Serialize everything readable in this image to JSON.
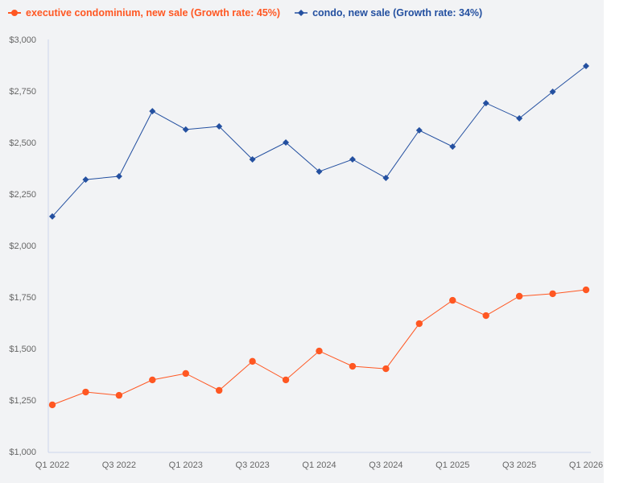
{
  "chart_data": {
    "type": "line",
    "categories": [
      "Q1 2022",
      "Q2 2022",
      "Q3 2022",
      "Q4 2022",
      "Q1 2023",
      "Q2 2023",
      "Q3 2023",
      "Q4 2023",
      "Q1 2024",
      "Q2 2024",
      "Q3 2024",
      "Q4 2024",
      "Q1 2025",
      "Q2 2025",
      "Q3 2025",
      "Q4 2025",
      "Q1 2026"
    ],
    "x_tick_labels": [
      "Q1 2022",
      "Q3 2022",
      "Q1 2023",
      "Q3 2023",
      "Q1 2024",
      "Q3 2024",
      "Q1 2025",
      "Q3 2025",
      "Q1 2026"
    ],
    "y_tick_labels": [
      "$1,000",
      "$1,250",
      "$1,500",
      "$1,750",
      "$2,000",
      "$2,250",
      "$2,500",
      "$2,750",
      "$3,000"
    ],
    "ylim": [
      1000,
      3000
    ],
    "grid": false,
    "legend_position": "top-left",
    "series": [
      {
        "name": "executive condominium, new sale (Growth rate: 45%)",
        "color": "#ff5722",
        "marker": "circle",
        "values": [
          1227,
          1289,
          1273,
          1348,
          1379,
          1297,
          1438,
          1348,
          1488,
          1414,
          1402,
          1621,
          1734,
          1660,
          1754,
          1766,
          1785
        ]
      },
      {
        "name": "condo, new sale (Growth rate: 34%)",
        "color": "#2450a0",
        "marker": "diamond",
        "values": [
          2141,
          2320,
          2336,
          2652,
          2563,
          2578,
          2418,
          2500,
          2359,
          2418,
          2328,
          2559,
          2480,
          2691,
          2617,
          2746,
          2871
        ]
      }
    ]
  }
}
